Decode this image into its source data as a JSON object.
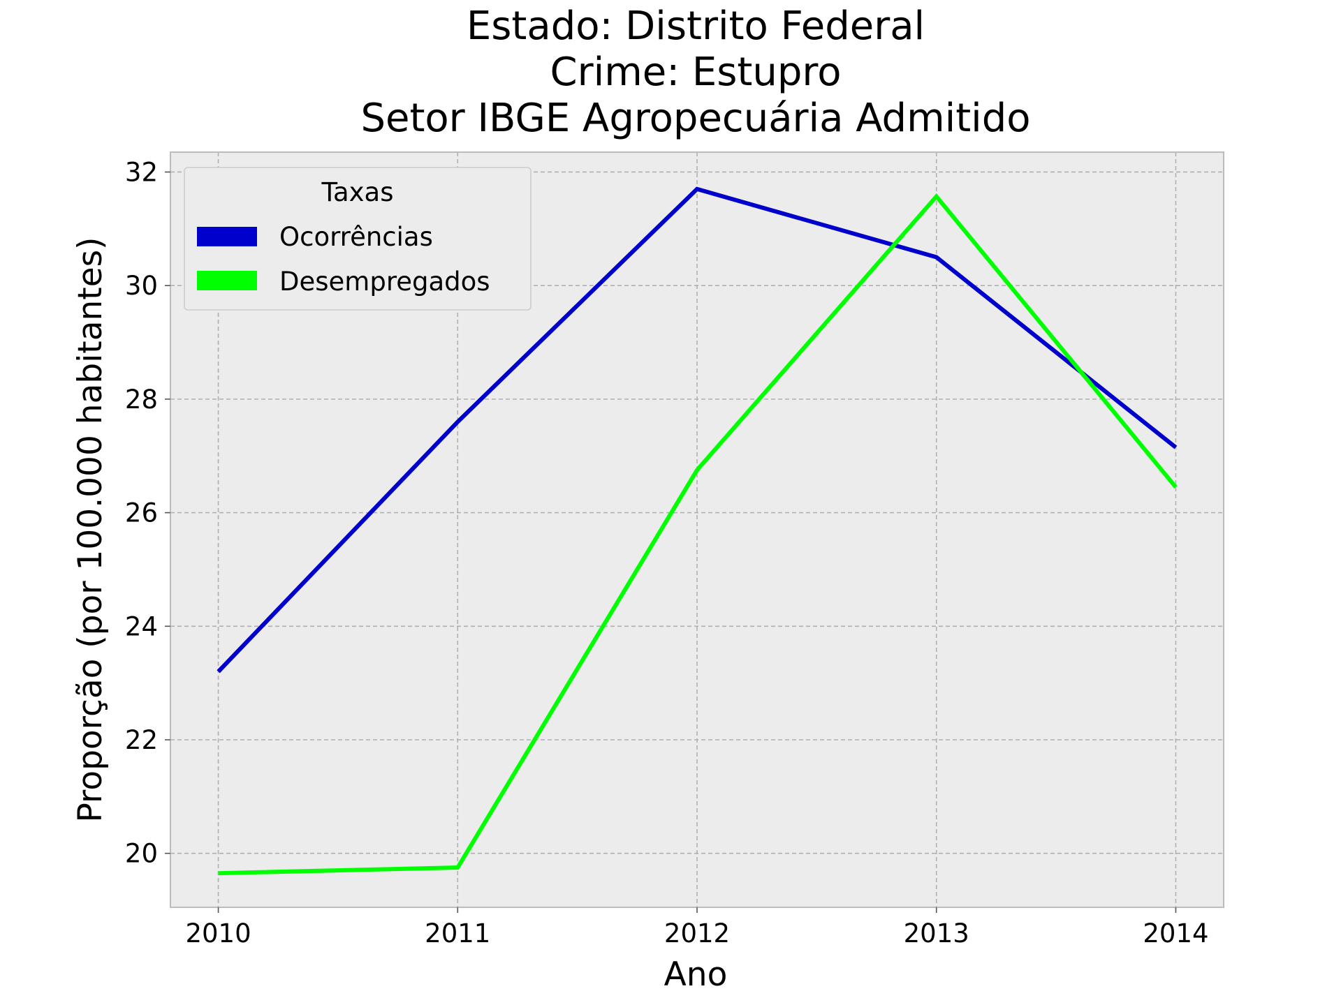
{
  "chart_data": {
    "type": "line",
    "title_lines": [
      "Estado: Distrito Federal",
      "Crime: Estupro",
      "Setor IBGE  Agropecuária   Admitido"
    ],
    "xlabel": "Ano",
    "ylabel": "Proporção (por 100.000 habitantes)",
    "x": [
      2010,
      2011,
      2012,
      2013,
      2014
    ],
    "x_tick_labels": [
      "2010",
      "2011",
      "2012",
      "2013",
      "2014"
    ],
    "y_ticks": [
      20,
      22,
      24,
      26,
      28,
      30,
      32
    ],
    "y_tick_labels": [
      "20",
      "22",
      "24",
      "26",
      "28",
      "30",
      "32"
    ],
    "xlim": [
      2009.8,
      2014.2
    ],
    "ylim": [
      19.05,
      32.35
    ],
    "grid": true,
    "legend": {
      "title": "Taxas",
      "placement": "top-left"
    },
    "series": [
      {
        "name": "Ocorrências",
        "color": "#0000cc",
        "values": [
          23.2,
          27.6,
          31.7,
          30.5,
          27.15
        ]
      },
      {
        "name": "Desempregados",
        "color": "#00ff00",
        "values": [
          19.65,
          19.75,
          26.75,
          31.57,
          26.45
        ]
      }
    ],
    "background": "#ececec",
    "frame_color": "#bcbcbc"
  }
}
